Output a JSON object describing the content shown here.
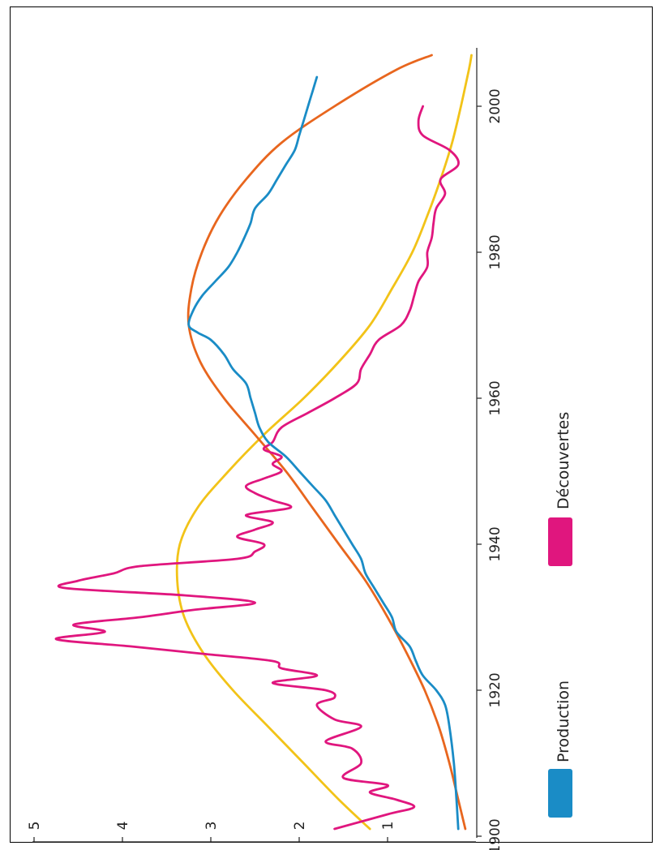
{
  "chart_data": {
    "type": "line",
    "title": "",
    "xlabel": "",
    "ylabel": "",
    "xlim": [
      1900,
      2010
    ],
    "ylim": [
      0,
      5
    ],
    "x_ticks": [
      1900,
      1920,
      1940,
      1960,
      1980,
      2000
    ],
    "y_ticks": [
      1,
      2,
      3,
      4,
      5
    ],
    "grid": false,
    "legend_position": "bottom",
    "legend": [
      {
        "name": "Production",
        "color": "#1a8cc6"
      },
      {
        "name": "Découvertes",
        "color": "#e0167e"
      }
    ],
    "series": [
      {
        "name": "Production",
        "color": "#1a8cc6",
        "x": [
          1901,
          1905,
          1910,
          1915,
          1918,
          1920,
          1922,
          1924,
          1926,
          1928,
          1930,
          1932,
          1934,
          1936,
          1938,
          1940,
          1942,
          1944,
          1946,
          1948,
          1950,
          1952,
          1954,
          1956,
          1958,
          1960,
          1962,
          1964,
          1966,
          1968,
          1969,
          1970,
          1972,
          1974,
          1976,
          1978,
          1980,
          1982,
          1984,
          1986,
          1988,
          1990,
          1992,
          1994,
          1996,
          1998,
          2000,
          2002,
          2004
        ],
        "y": [
          0.2,
          0.22,
          0.25,
          0.3,
          0.35,
          0.45,
          0.6,
          0.68,
          0.75,
          0.9,
          0.95,
          1.05,
          1.15,
          1.25,
          1.3,
          1.4,
          1.5,
          1.6,
          1.7,
          1.85,
          2.0,
          2.15,
          2.35,
          2.45,
          2.5,
          2.55,
          2.6,
          2.75,
          2.85,
          3.0,
          3.15,
          3.25,
          3.2,
          3.1,
          2.95,
          2.8,
          2.7,
          2.62,
          2.55,
          2.5,
          2.35,
          2.25,
          2.15,
          2.05,
          2.0,
          1.95,
          1.9,
          1.85,
          1.8
        ]
      },
      {
        "name": "Découvertes",
        "color": "#e0167e",
        "x": [
          1901,
          1903,
          1904,
          1905,
          1906,
          1907,
          1908,
          1910,
          1912,
          1913,
          1915,
          1916,
          1918,
          1919,
          1920,
          1921,
          1922,
          1923,
          1924,
          1925,
          1926,
          1927,
          1928,
          1929,
          1930,
          1931,
          1932,
          1933,
          1934,
          1935,
          1936,
          1937,
          1938,
          1939,
          1940,
          1941,
          1942,
          1943,
          1944,
          1945,
          1946,
          1947,
          1948,
          1949,
          1950,
          1951,
          1952,
          1953,
          1954,
          1956,
          1958,
          1960,
          1962,
          1964,
          1966,
          1968,
          1970,
          1972,
          1974,
          1976,
          1978,
          1980,
          1982,
          1984,
          1986,
          1988,
          1990,
          1992,
          1994,
          1996,
          1998,
          2000
        ],
        "y": [
          1.6,
          1.0,
          0.7,
          0.9,
          1.2,
          1.0,
          1.5,
          1.3,
          1.4,
          1.7,
          1.3,
          1.6,
          1.8,
          1.6,
          1.7,
          2.3,
          1.8,
          2.2,
          2.3,
          3.1,
          3.9,
          4.75,
          4.2,
          4.55,
          3.8,
          3.2,
          2.5,
          3.3,
          4.65,
          4.5,
          4.1,
          3.8,
          2.7,
          2.5,
          2.4,
          2.7,
          2.5,
          2.3,
          2.6,
          2.1,
          2.3,
          2.5,
          2.6,
          2.4,
          2.2,
          2.3,
          2.2,
          2.4,
          2.3,
          2.2,
          1.9,
          1.6,
          1.35,
          1.3,
          1.2,
          1.1,
          0.85,
          0.75,
          0.7,
          0.65,
          0.55,
          0.55,
          0.5,
          0.48,
          0.45,
          0.35,
          0.4,
          0.2,
          0.3,
          0.6,
          0.65,
          0.6
        ]
      },
      {
        "name": "",
        "color": "#e8661e",
        "x": [
          1901,
          1905,
          1910,
          1915,
          1920,
          1925,
          1930,
          1935,
          1940,
          1945,
          1950,
          1955,
          1960,
          1965,
          1970,
          1975,
          1980,
          1985,
          1990,
          1995,
          2000,
          2005,
          2007
        ],
        "y": [
          0.12,
          0.2,
          0.3,
          0.42,
          0.58,
          0.78,
          1.0,
          1.25,
          1.55,
          1.85,
          2.15,
          2.5,
          2.85,
          3.12,
          3.25,
          3.22,
          3.1,
          2.9,
          2.6,
          2.2,
          1.6,
          0.9,
          0.5
        ]
      },
      {
        "name": "",
        "color": "#f2c318",
        "x": [
          1901,
          1905,
          1910,
          1915,
          1920,
          1925,
          1930,
          1935,
          1940,
          1945,
          1950,
          1955,
          1960,
          1965,
          1970,
          1975,
          1980,
          1985,
          1990,
          1995,
          2000,
          2005,
          2007
        ],
        "y": [
          1.2,
          1.55,
          1.95,
          2.35,
          2.75,
          3.08,
          3.3,
          3.38,
          3.35,
          3.15,
          2.8,
          2.4,
          1.95,
          1.55,
          1.2,
          0.95,
          0.72,
          0.55,
          0.4,
          0.27,
          0.17,
          0.08,
          0.05
        ]
      }
    ]
  }
}
